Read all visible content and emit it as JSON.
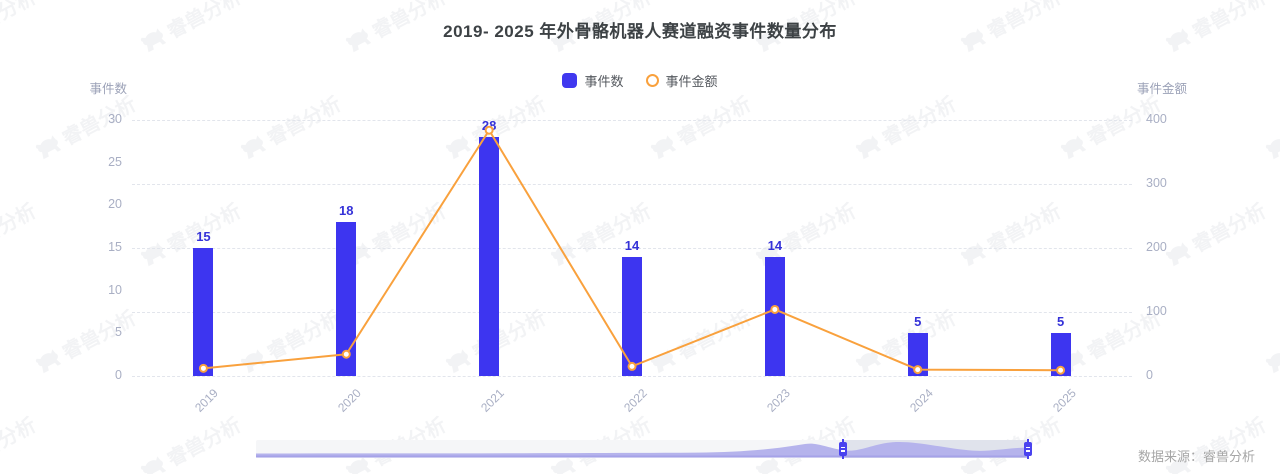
{
  "title": "2019- 2025 年外骨骼机器人赛道融资事件数量分布",
  "legend": {
    "bar_label": "事件数",
    "line_label": "事件金额"
  },
  "left_axis": {
    "name": "事件数",
    "ticks": [
      0,
      5,
      10,
      15,
      20,
      25,
      30
    ],
    "max": 30
  },
  "right_axis": {
    "name": "事件金额",
    "ticks": [
      0,
      100,
      200,
      300,
      400
    ],
    "max": 400
  },
  "source": "数据来源：睿兽分析",
  "watermark": "睿兽分析",
  "colors": {
    "bar": "#3D35F0",
    "bar_label": "#3532D8",
    "line": "#F9A13D",
    "marker_fill": "#FFFFFF",
    "axis_text": "#A9AFC4",
    "axis_name": "#9BA1B7",
    "grid": "#E2E5EC",
    "title_text": "#3D4245",
    "legend_text": "#54585E",
    "source_text": "#A6A6A6",
    "slider_area": "#B5B3EC",
    "slider_edge": "#A5A2E8",
    "slider_track": "#F5F6F8",
    "handle": "#4A43EF"
  },
  "chart_data": {
    "type": "bar",
    "subtype": "bar+line combo",
    "categories": [
      "2019",
      "2020",
      "2021",
      "2022",
      "2023",
      "2024",
      "2025"
    ],
    "series": [
      {
        "name": "事件数",
        "type": "bar",
        "axis": "left",
        "values": [
          15,
          18,
          28,
          14,
          14,
          5,
          5
        ],
        "labels_shown": true
      },
      {
        "name": "事件金额",
        "type": "line",
        "axis": "right",
        "values": [
          12,
          34,
          384,
          15,
          104,
          10,
          9
        ],
        "labels_shown": false
      }
    ],
    "title": "2019- 2025 年外骨骼机器人赛道融资事件数量分布",
    "xlabel": "",
    "ylabel_left": "事件数",
    "ylabel_right": "事件金额",
    "ylim_left": [
      0,
      30
    ],
    "ylim_right": [
      0,
      400
    ],
    "grid": "dashed horizontal",
    "legend_position": "top-center",
    "x_label_rotation": 45,
    "datazoom": {
      "window_start_pct": 76,
      "window_end_pct": 100
    }
  }
}
